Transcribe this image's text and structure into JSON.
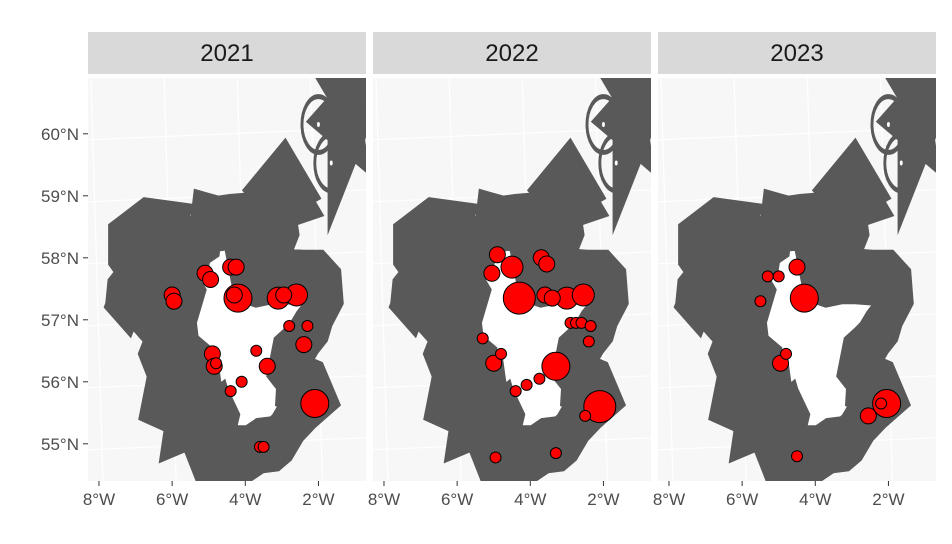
{
  "chart_data": {
    "type": "scatter",
    "description_kind": "faceted bubble map",
    "facets": [
      {
        "label": "2021",
        "points": [
          {
            "lon": -6.0,
            "lat": 57.4,
            "size": 2
          },
          {
            "lon": -5.95,
            "lat": 57.3,
            "size": 2
          },
          {
            "lon": -5.1,
            "lat": 57.75,
            "size": 2
          },
          {
            "lon": -4.95,
            "lat": 57.65,
            "size": 2
          },
          {
            "lon": -4.4,
            "lat": 57.85,
            "size": 2
          },
          {
            "lon": -4.25,
            "lat": 57.85,
            "size": 2
          },
          {
            "lon": -4.2,
            "lat": 57.35,
            "size": 4
          },
          {
            "lon": -4.3,
            "lat": 57.4,
            "size": 2
          },
          {
            "lon": -3.1,
            "lat": 57.35,
            "size": 3
          },
          {
            "lon": -2.95,
            "lat": 57.4,
            "size": 2
          },
          {
            "lon": -2.6,
            "lat": 57.4,
            "size": 3
          },
          {
            "lon": -2.8,
            "lat": 56.9,
            "size": 1
          },
          {
            "lon": -2.4,
            "lat": 56.6,
            "size": 2
          },
          {
            "lon": -2.3,
            "lat": 56.9,
            "size": 1
          },
          {
            "lon": -3.4,
            "lat": 56.25,
            "size": 2
          },
          {
            "lon": -3.7,
            "lat": 56.5,
            "size": 1
          },
          {
            "lon": -4.9,
            "lat": 56.45,
            "size": 2
          },
          {
            "lon": -4.85,
            "lat": 56.25,
            "size": 2
          },
          {
            "lon": -4.8,
            "lat": 56.3,
            "size": 1
          },
          {
            "lon": -4.4,
            "lat": 55.85,
            "size": 1
          },
          {
            "lon": -4.1,
            "lat": 56.0,
            "size": 1
          },
          {
            "lon": -2.1,
            "lat": 55.65,
            "size": 4
          },
          {
            "lon": -3.6,
            "lat": 54.95,
            "size": 1
          },
          {
            "lon": -3.5,
            "lat": 54.95,
            "size": 1
          }
        ]
      },
      {
        "label": "2022",
        "points": [
          {
            "lon": -4.9,
            "lat": 58.05,
            "size": 2
          },
          {
            "lon": -5.05,
            "lat": 57.75,
            "size": 2
          },
          {
            "lon": -4.5,
            "lat": 57.85,
            "size": 3
          },
          {
            "lon": -3.7,
            "lat": 58.0,
            "size": 2
          },
          {
            "lon": -3.55,
            "lat": 57.9,
            "size": 2
          },
          {
            "lon": -4.3,
            "lat": 57.35,
            "size": 5
          },
          {
            "lon": -3.6,
            "lat": 57.4,
            "size": 2
          },
          {
            "lon": -3.4,
            "lat": 57.35,
            "size": 2
          },
          {
            "lon": -3.0,
            "lat": 57.35,
            "size": 3
          },
          {
            "lon": -2.55,
            "lat": 57.4,
            "size": 3
          },
          {
            "lon": -2.9,
            "lat": 56.95,
            "size": 1
          },
          {
            "lon": -2.75,
            "lat": 56.95,
            "size": 1
          },
          {
            "lon": -2.6,
            "lat": 56.95,
            "size": 1
          },
          {
            "lon": -2.35,
            "lat": 56.9,
            "size": 1
          },
          {
            "lon": -2.4,
            "lat": 56.65,
            "size": 1
          },
          {
            "lon": -5.3,
            "lat": 56.7,
            "size": 1
          },
          {
            "lon": -4.8,
            "lat": 56.45,
            "size": 1
          },
          {
            "lon": -5.0,
            "lat": 56.3,
            "size": 2
          },
          {
            "lon": -3.3,
            "lat": 56.25,
            "size": 4
          },
          {
            "lon": -3.75,
            "lat": 56.05,
            "size": 1
          },
          {
            "lon": -4.1,
            "lat": 55.95,
            "size": 1
          },
          {
            "lon": -4.4,
            "lat": 55.85,
            "size": 1
          },
          {
            "lon": -2.1,
            "lat": 55.6,
            "size": 5
          },
          {
            "lon": -2.5,
            "lat": 55.45,
            "size": 1
          },
          {
            "lon": -3.3,
            "lat": 54.85,
            "size": 1
          },
          {
            "lon": -4.95,
            "lat": 54.78,
            "size": 1
          }
        ]
      },
      {
        "label": "2023",
        "points": [
          {
            "lon": -5.3,
            "lat": 57.7,
            "size": 1
          },
          {
            "lon": -5.0,
            "lat": 57.7,
            "size": 1
          },
          {
            "lon": -4.5,
            "lat": 57.85,
            "size": 2
          },
          {
            "lon": -5.5,
            "lat": 57.3,
            "size": 1
          },
          {
            "lon": -4.3,
            "lat": 57.35,
            "size": 4
          },
          {
            "lon": -4.8,
            "lat": 56.45,
            "size": 1
          },
          {
            "lon": -4.95,
            "lat": 56.3,
            "size": 2
          },
          {
            "lon": -2.05,
            "lat": 55.65,
            "size": 4
          },
          {
            "lon": -2.2,
            "lat": 55.65,
            "size": 1
          },
          {
            "lon": -2.55,
            "lat": 55.45,
            "size": 2
          },
          {
            "lon": -4.5,
            "lat": 54.8,
            "size": 1
          }
        ]
      }
    ],
    "xlim": [
      -8.3,
      -0.7
    ],
    "ylim": [
      54.4,
      60.9
    ],
    "x_ticks": [
      -8,
      -6,
      -4,
      -2
    ],
    "x_tick_labels": [
      "8°W",
      "6°W",
      "4°W",
      "2°W"
    ],
    "y_ticks": [
      55,
      56,
      57,
      58,
      59,
      60
    ],
    "y_tick_labels": [
      "55°N",
      "56°N",
      "57°N",
      "58°N",
      "59°N",
      "60°N"
    ],
    "legend": "none",
    "grid": true,
    "colors": {
      "point_fill": "#ff0000",
      "point_stroke": "#000000",
      "land_fill": "#ffffff",
      "coast_stroke": "#595959",
      "panel_bg": "#f7f7f7",
      "grid": "#ffffff",
      "strip_bg": "#d9d9d9"
    }
  }
}
